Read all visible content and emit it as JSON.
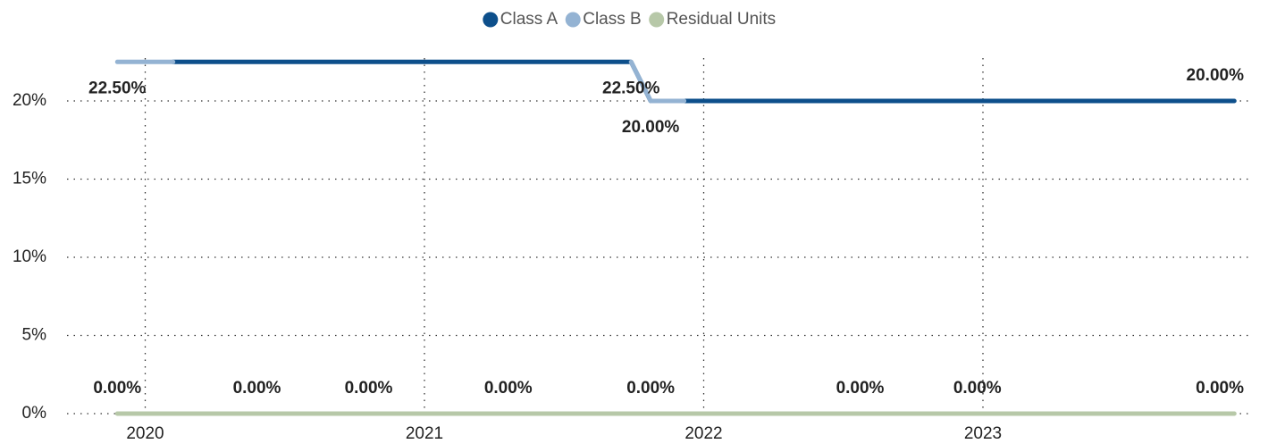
{
  "chart_data": {
    "type": "line",
    "x": [
      2019.9,
      2020.1,
      2020.4,
      2020.8,
      2021.3,
      2021.74,
      2021.81,
      2021.93,
      2022.56,
      2022.98,
      2023.82,
      2023.9
    ],
    "series": [
      {
        "name": "Class A",
        "color": "#0d4f8b",
        "values": [
          null,
          22.5,
          22.5,
          22.5,
          22.5,
          22.5,
          20,
          20,
          20,
          20,
          20,
          20
        ],
        "value_labels": [
          null,
          null,
          null,
          null,
          null,
          "22.50%",
          null,
          null,
          null,
          null,
          null,
          "20.00%"
        ]
      },
      {
        "name": "Class B",
        "color": "#94b3d3",
        "values": [
          22.5,
          22.5,
          null,
          null,
          null,
          22.5,
          20,
          20,
          null,
          null,
          null,
          null
        ],
        "value_labels": [
          "22.50%",
          null,
          null,
          null,
          null,
          null,
          "20.00%",
          null,
          null,
          null,
          null,
          null
        ]
      },
      {
        "name": "Residual Units",
        "color": "#b7c8a8",
        "values": [
          0,
          0,
          0,
          0,
          0,
          0,
          0,
          0,
          0,
          0,
          0,
          0
        ],
        "value_labels": [
          "0.00%",
          null,
          "0.00%",
          "0.00%",
          "0.00%",
          null,
          "0.00%",
          null,
          "0.00%",
          "0.00%",
          null,
          "0.00%"
        ]
      }
    ],
    "xlim": [
      2019.72,
      2023.96
    ],
    "xticks": [
      2020,
      2021,
      2022,
      2023
    ],
    "ylim": [
      0,
      25
    ],
    "yticks": [
      {
        "value": 0,
        "label": "0%"
      },
      {
        "value": 5,
        "label": "5%"
      },
      {
        "value": 10,
        "label": "10%"
      },
      {
        "value": 15,
        "label": "15%"
      },
      {
        "value": 20,
        "label": "20%"
      }
    ],
    "grid": true
  }
}
